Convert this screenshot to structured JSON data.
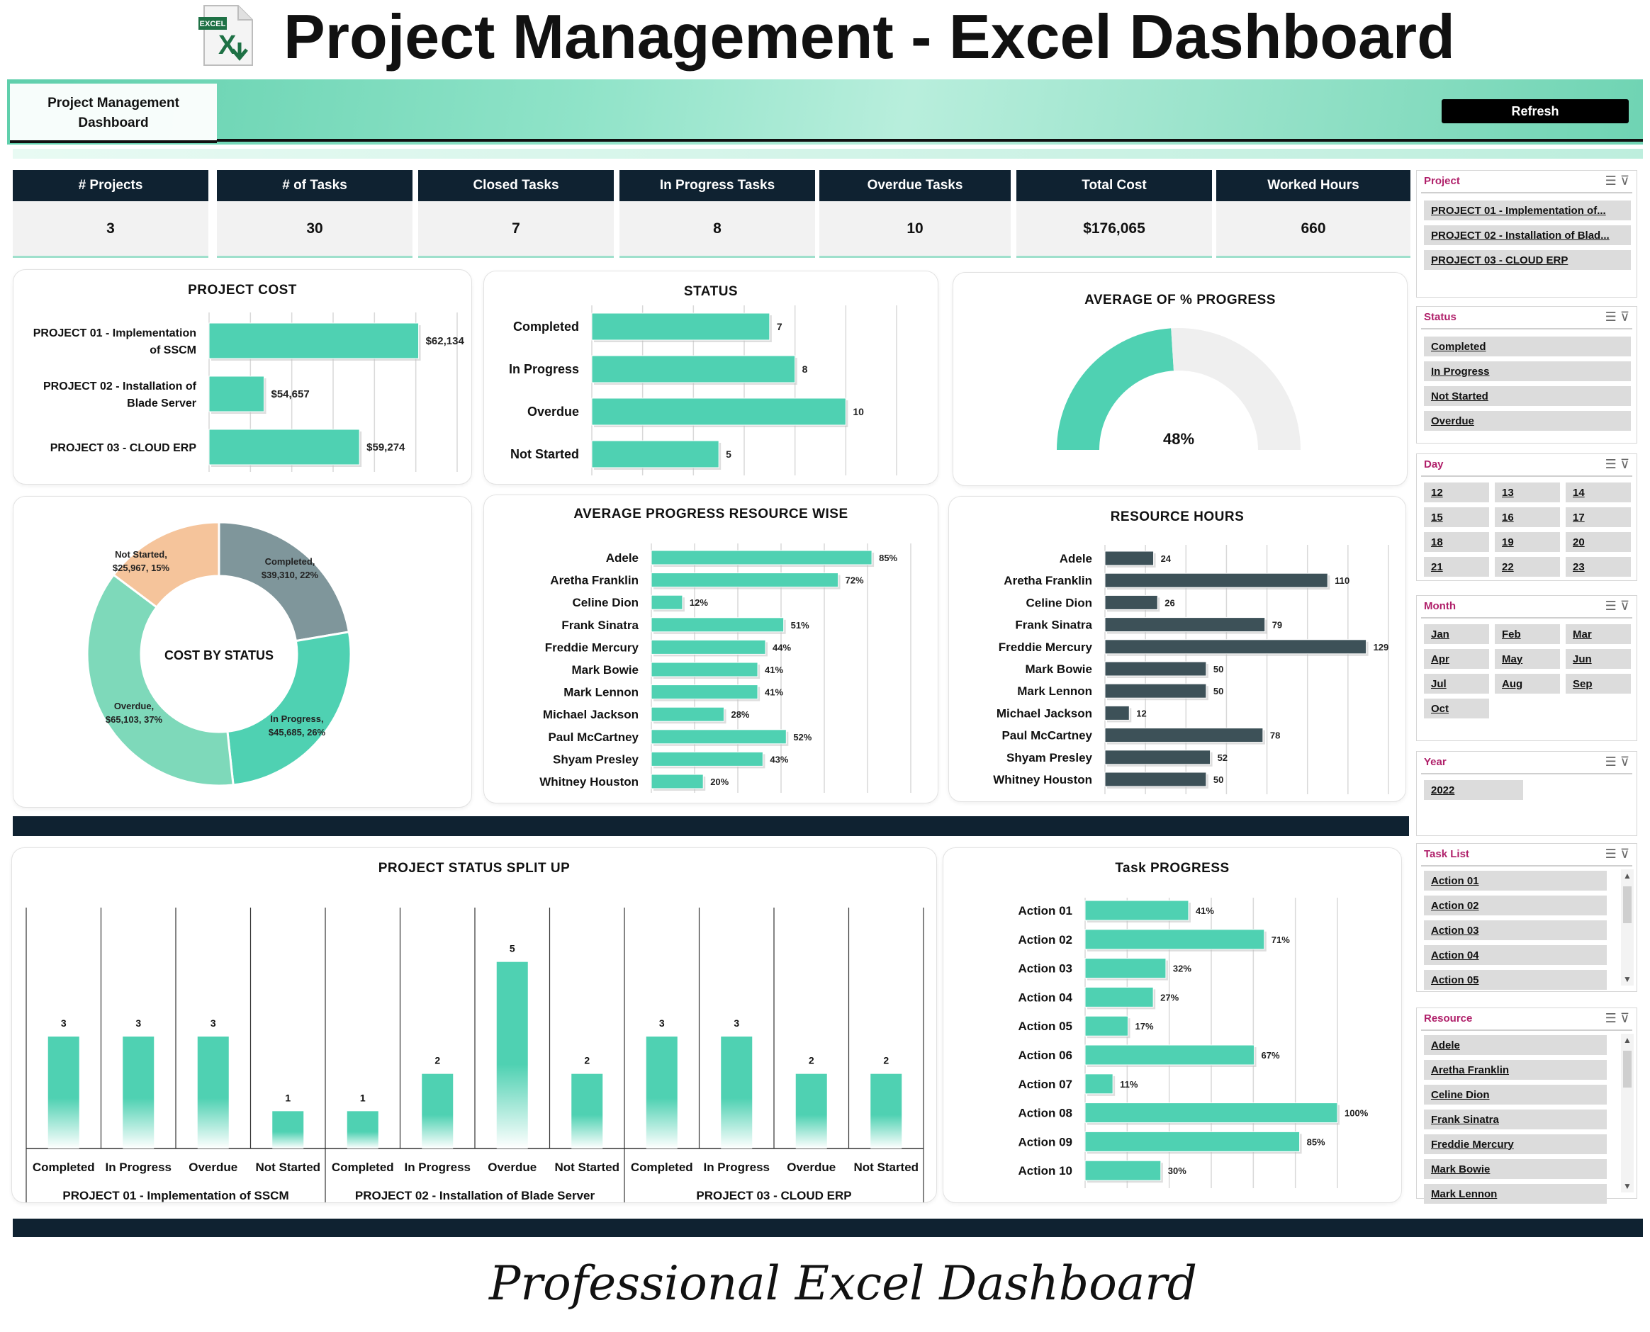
{
  "page": {
    "title": "Project Management - Excel Dashboard",
    "excel_logo_label": "EXCEL",
    "footer": "Professional Excel Dashboard"
  },
  "banner": {
    "dashboard_label_line1": "Project Management",
    "dashboard_label_line2": "Dashboard",
    "refresh_button": "Refresh"
  },
  "kpis": [
    {
      "label": "# Projects",
      "value": "3"
    },
    {
      "label": "# of Tasks",
      "value": "30"
    },
    {
      "label": "Closed Tasks",
      "value": "7"
    },
    {
      "label": "In Progress Tasks",
      "value": "8"
    },
    {
      "label": "Overdue Tasks",
      "value": "10"
    },
    {
      "label": "Total Cost",
      "value": "$176,065"
    },
    {
      "label": "Worked Hours",
      "value": "660"
    }
  ],
  "slicers": {
    "project": {
      "title": "Project",
      "items": [
        "PROJECT 01 - Implementation of...",
        "PROJECT 02 - Installation of Blad...",
        "PROJECT 03 - CLOUD ERP"
      ]
    },
    "status": {
      "title": "Status",
      "items": [
        "Completed",
        "In Progress",
        "Not Started",
        "Overdue"
      ]
    },
    "day": {
      "title": "Day",
      "items": [
        "12",
        "13",
        "14",
        "15",
        "16",
        "17",
        "18",
        "19",
        "20",
        "21",
        "22",
        "23"
      ]
    },
    "month": {
      "title": "Month",
      "items": [
        "Jan",
        "Feb",
        "Mar",
        "Apr",
        "May",
        "Jun",
        "Jul",
        "Aug",
        "Sep",
        "Oct"
      ]
    },
    "year": {
      "title": "Year",
      "items": [
        "2022"
      ]
    },
    "task_list": {
      "title": "Task List",
      "items": [
        "Action 01",
        "Action 02",
        "Action 03",
        "Action 04",
        "Action 05"
      ]
    },
    "resource": {
      "title": "Resource",
      "items": [
        "Adele",
        "Aretha Franklin",
        "Celine Dion",
        "Frank Sinatra",
        "Freddie Mercury",
        "Mark Bowie",
        "Mark Lennon"
      ]
    }
  },
  "colors": {
    "teal": "#4fd1b2",
    "navy": "#0f2231",
    "slate": "#3d5158",
    "peach": "#f5c49b",
    "grey_teal": "#7f969b",
    "mint": "#7ed9ba"
  },
  "chart_data": [
    {
      "id": "project_cost",
      "type": "bar",
      "orientation": "horizontal",
      "title": "PROJECT COST",
      "categories": [
        "PROJECT 01 - Implementation of SSCM",
        "PROJECT 02 - Installation of Blade Server",
        "PROJECT 03 - CLOUD ERP"
      ],
      "category_lines": [
        [
          "PROJECT 01 - Implementation",
          "of SSCM"
        ],
        [
          "PROJECT 02 - Installation of",
          "Blade Server"
        ],
        [
          "PROJECT 03 - CLOUD ERP"
        ]
      ],
      "values": [
        62134,
        54657,
        59274
      ],
      "labels": [
        "$62,134",
        "$54,657",
        "$59,274"
      ],
      "xlim": [
        52000,
        64000
      ]
    },
    {
      "id": "status",
      "type": "bar",
      "orientation": "horizontal",
      "title": "STATUS",
      "categories": [
        "Completed",
        "In Progress",
        "Overdue",
        "Not Started"
      ],
      "values": [
        7,
        8,
        10,
        5
      ],
      "xlim": [
        0,
        12
      ]
    },
    {
      "id": "avg_progress",
      "type": "pie",
      "title": "AVERAGE OF % PROGRESS",
      "value": 0.48,
      "label": "48%"
    },
    {
      "id": "cost_by_status",
      "type": "pie",
      "title": "COST BY STATUS",
      "slices": [
        {
          "name": "Completed",
          "value": 39310,
          "label1": "Completed,",
          "label2": "$39,310, 22%"
        },
        {
          "name": "In Progress",
          "value": 45685,
          "label1": "In Progress,",
          "label2": "$45,685, 26%"
        },
        {
          "name": "Overdue",
          "value": 65103,
          "label1": "Overdue,",
          "label2": "$65,103, 37%"
        },
        {
          "name": "Not Started",
          "value": 25967,
          "label1": "Not Started,",
          "label2": "$25,967, 15%"
        }
      ]
    },
    {
      "id": "avg_progress_resource",
      "type": "bar",
      "orientation": "horizontal",
      "title": "AVERAGE PROGRESS RESOURCE WISE",
      "categories": [
        "Adele",
        "Aretha Franklin",
        "Celine Dion",
        "Frank Sinatra",
        "Freddie Mercury",
        "Mark Bowie",
        "Mark Lennon",
        "Michael Jackson",
        "Paul McCartney",
        "Shyam Presley",
        "Whitney Houston"
      ],
      "values": [
        85,
        72,
        12,
        51,
        44,
        41,
        41,
        28,
        52,
        43,
        20
      ],
      "labels": [
        "85%",
        "72%",
        "12%",
        "51%",
        "44%",
        "41%",
        "41%",
        "28%",
        "52%",
        "43%",
        "20%"
      ],
      "xlim": [
        0,
        100
      ]
    },
    {
      "id": "resource_hours",
      "type": "bar",
      "orientation": "horizontal",
      "title": "RESOURCE HOURS",
      "categories": [
        "Adele",
        "Aretha Franklin",
        "Celine Dion",
        "Frank Sinatra",
        "Freddie Mercury",
        "Mark Bowie",
        "Mark Lennon",
        "Michael Jackson",
        "Paul McCartney",
        "Shyam Presley",
        "Whitney Houston"
      ],
      "values": [
        24,
        110,
        26,
        79,
        129,
        50,
        50,
        12,
        78,
        52,
        50
      ],
      "xlim": [
        0,
        140
      ]
    },
    {
      "id": "project_status_split",
      "type": "bar",
      "title": "PROJECT STATUS SPLIT UP",
      "groups": [
        {
          "name": "PROJECT 01 - Implementation of SSCM",
          "categories": [
            "Completed",
            "In Progress",
            "Overdue",
            "Not Started"
          ],
          "values": [
            3,
            3,
            3,
            1
          ]
        },
        {
          "name": "PROJECT 02 - Installation of Blade Server",
          "categories": [
            "Completed",
            "In Progress",
            "Overdue",
            "Not Started"
          ],
          "values": [
            1,
            2,
            5,
            2
          ]
        },
        {
          "name": "PROJECT 03 - CLOUD ERP",
          "categories": [
            "Completed",
            "In Progress",
            "Overdue",
            "Not Started"
          ],
          "values": [
            3,
            3,
            2,
            2
          ]
        }
      ],
      "ylim": [
        0,
        6
      ]
    },
    {
      "id": "task_progress",
      "type": "bar",
      "orientation": "horizontal",
      "title": "Task PROGRESS",
      "categories": [
        "Action 01",
        "Action 02",
        "Action 03",
        "Action 04",
        "Action 05",
        "Action 06",
        "Action 07",
        "Action 08",
        "Action 09",
        "Action 10"
      ],
      "values": [
        41,
        71,
        32,
        27,
        17,
        67,
        11,
        100,
        85,
        30
      ],
      "labels": [
        "41%",
        "71%",
        "32%",
        "27%",
        "17%",
        "67%",
        "11%",
        "100%",
        "85%",
        "30%"
      ],
      "xlim": [
        0,
        100
      ]
    }
  ]
}
